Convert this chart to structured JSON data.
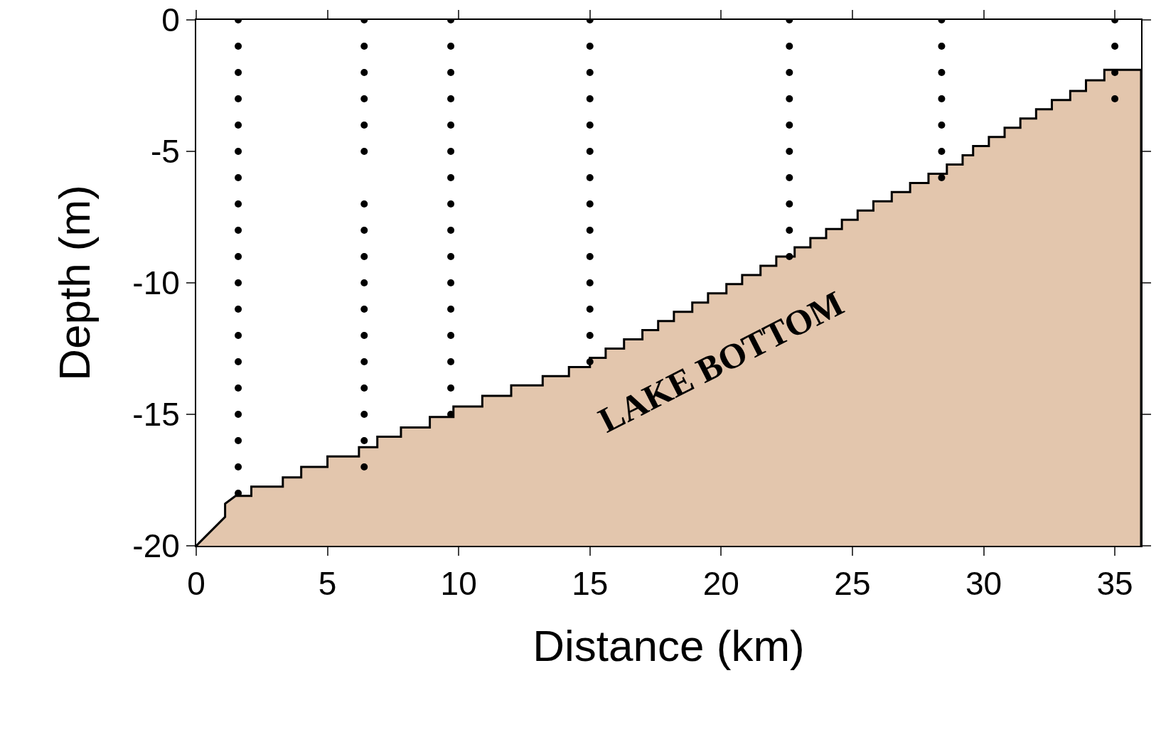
{
  "chart_data": {
    "type": "scatter",
    "xlabel": "Distance (km)",
    "ylabel": "Depth (m)",
    "xlim": [
      0,
      36
    ],
    "ylim": [
      -20,
      0
    ],
    "xticks": [
      0,
      5,
      10,
      15,
      20,
      25,
      30,
      35
    ],
    "yticks": [
      -20,
      -15,
      -10,
      -5,
      0
    ],
    "grid": false,
    "series": [
      {
        "type": "area",
        "color": "#e3c6ad",
        "x": [
          0,
          1.1,
          1.1,
          1.5,
          2.1,
          2.1,
          3.3,
          3.3,
          4.0,
          4.0,
          5.0,
          5.0,
          6.2,
          6.2,
          6.9,
          6.9,
          7.8,
          7.8,
          8.9,
          8.9,
          9.8,
          9.8,
          10.9,
          10.9,
          12.0,
          12.0,
          13.2,
          13.2,
          14.2,
          14.2,
          15.0,
          15.0,
          15.6,
          15.6,
          16.3,
          16.3,
          17.0,
          17.0,
          17.6,
          17.6,
          18.2,
          18.2,
          18.9,
          18.9,
          19.5,
          19.5,
          20.2,
          20.2,
          20.8,
          20.8,
          21.5,
          21.5,
          22.1,
          22.1,
          22.8,
          22.8,
          23.4,
          23.4,
          24.0,
          24.0,
          24.6,
          24.6,
          25.2,
          25.2,
          25.8,
          25.8,
          26.5,
          26.5,
          27.2,
          27.2,
          27.9,
          27.9,
          28.6,
          28.6,
          29.2,
          29.2,
          29.6,
          29.6,
          30.2,
          30.2,
          30.8,
          30.8,
          31.4,
          31.4,
          32.0,
          32.0,
          32.6,
          32.6,
          33.3,
          33.3,
          33.9,
          33.9,
          34.6,
          34.6,
          36,
          36
        ],
        "values": [
          -20,
          -18.9,
          -18.4,
          -18.1,
          -18.1,
          -17.75,
          -17.75,
          -17.4,
          -17.4,
          -17.0,
          -17.0,
          -16.6,
          -16.6,
          -16.25,
          -16.25,
          -15.85,
          -15.85,
          -15.5,
          -15.5,
          -15.1,
          -15.1,
          -14.7,
          -14.7,
          -14.3,
          -14.3,
          -13.9,
          -13.9,
          -13.55,
          -13.55,
          -13.2,
          -13.2,
          -12.85,
          -12.85,
          -12.5,
          -12.5,
          -12.15,
          -12.15,
          -11.8,
          -11.8,
          -11.45,
          -11.45,
          -11.1,
          -11.1,
          -10.75,
          -10.75,
          -10.4,
          -10.4,
          -10.05,
          -10.05,
          -9.7,
          -9.7,
          -9.35,
          -9.35,
          -9.0,
          -9.0,
          -8.65,
          -8.65,
          -8.3,
          -8.3,
          -7.95,
          -7.95,
          -7.6,
          -7.6,
          -7.25,
          -7.25,
          -6.9,
          -6.9,
          -6.55,
          -6.55,
          -6.2,
          -6.2,
          -5.85,
          -5.85,
          -5.5,
          -5.5,
          -5.15,
          -5.15,
          -4.8,
          -4.8,
          -4.45,
          -4.45,
          -4.1,
          -4.1,
          -3.75,
          -3.75,
          -3.4,
          -3.4,
          -3.05,
          -3.05,
          -2.7,
          -2.7,
          -2.3,
          -2.3,
          -1.9,
          -1.9,
          -20
        ]
      },
      {
        "type": "scatter",
        "color": "#000000",
        "marker": "circle",
        "x": [
          1.6,
          1.6,
          1.6,
          1.6,
          1.6,
          1.6,
          1.6,
          1.6,
          1.6,
          1.6,
          1.6,
          1.6,
          1.6,
          1.6,
          1.6,
          1.6,
          1.6,
          1.6,
          1.6,
          6.4,
          6.4,
          6.4,
          6.4,
          6.4,
          6.4,
          6.4,
          6.4,
          6.4,
          6.4,
          6.4,
          6.4,
          6.4,
          6.4,
          6.4,
          6.4,
          6.4,
          9.7,
          9.7,
          9.7,
          9.7,
          9.7,
          9.7,
          9.7,
          9.7,
          9.7,
          9.7,
          9.7,
          9.7,
          9.7,
          9.7,
          9.7,
          9.7,
          15.0,
          15.0,
          15.0,
          15.0,
          15.0,
          15.0,
          15.0,
          15.0,
          15.0,
          15.0,
          15.0,
          15.0,
          15.0,
          15.0,
          22.6,
          22.6,
          22.6,
          22.6,
          22.6,
          22.6,
          22.6,
          22.6,
          22.6,
          22.6,
          28.4,
          28.4,
          28.4,
          28.4,
          28.4,
          28.4,
          28.4,
          35.0,
          35.0,
          35.0,
          35.0
        ],
        "values": [
          0,
          -1,
          -2,
          -3,
          -4,
          -5,
          -6,
          -7,
          -8,
          -9,
          -10,
          -11,
          -12,
          -13,
          -14,
          -15,
          -16,
          -17,
          -18,
          0,
          -1,
          -2,
          -3,
          -4,
          -5,
          -7,
          -8,
          -9,
          -10,
          -11,
          -12,
          -13,
          -14,
          -15,
          -16,
          -17,
          0,
          -1,
          -2,
          -3,
          -4,
          -5,
          -6,
          -7,
          -8,
          -9,
          -10,
          -11,
          -12,
          -13,
          -14,
          -15,
          0,
          -1,
          -2,
          -3,
          -4,
          -5,
          -6,
          -7,
          -8,
          -9,
          -10,
          -11,
          -12,
          -13,
          0,
          -1,
          -2,
          -3,
          -4,
          -5,
          -6,
          -7,
          -8,
          -9,
          0,
          -1,
          -2,
          -3,
          -4,
          -5,
          -6,
          0,
          -1,
          -2,
          -3
        ]
      }
    ],
    "annotations": [
      "LAKE BOTTOM"
    ]
  }
}
